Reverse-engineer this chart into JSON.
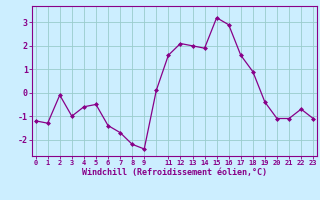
{
  "x": [
    0,
    1,
    2,
    3,
    4,
    5,
    6,
    7,
    8,
    9,
    10,
    11,
    12,
    13,
    14,
    15,
    16,
    17,
    18,
    19,
    20,
    21,
    22,
    23
  ],
  "y": [
    -1.2,
    -1.3,
    -0.1,
    -1.0,
    -0.6,
    -0.5,
    -1.4,
    -1.7,
    -2.2,
    -2.4,
    0.1,
    1.6,
    2.1,
    2.0,
    1.9,
    3.2,
    2.9,
    1.6,
    0.9,
    -0.4,
    -1.1,
    -1.1,
    -0.7,
    -1.1
  ],
  "xlim": [
    -0.3,
    23.3
  ],
  "ylim": [
    -2.7,
    3.7
  ],
  "yticks": [
    -2,
    -1,
    0,
    1,
    2,
    3
  ],
  "xticks": [
    0,
    1,
    2,
    3,
    4,
    5,
    6,
    7,
    8,
    9,
    11,
    12,
    13,
    14,
    15,
    16,
    17,
    18,
    19,
    20,
    21,
    22,
    23
  ],
  "xtick_labels": [
    "0",
    "1",
    "2",
    "3",
    "4",
    "5",
    "6",
    "7",
    "8",
    "9",
    "11",
    "12",
    "13",
    "14",
    "15",
    "16",
    "17",
    "18",
    "19",
    "20",
    "21",
    "22",
    "23"
  ],
  "xlabel": "Windchill (Refroidissement éolien,°C)",
  "line_color": "#880088",
  "marker_color": "#880088",
  "bg_color": "#cceeff",
  "grid_color": "#99cccc",
  "axis_color": "#880088",
  "tick_color": "#880088",
  "label_color": "#880088"
}
